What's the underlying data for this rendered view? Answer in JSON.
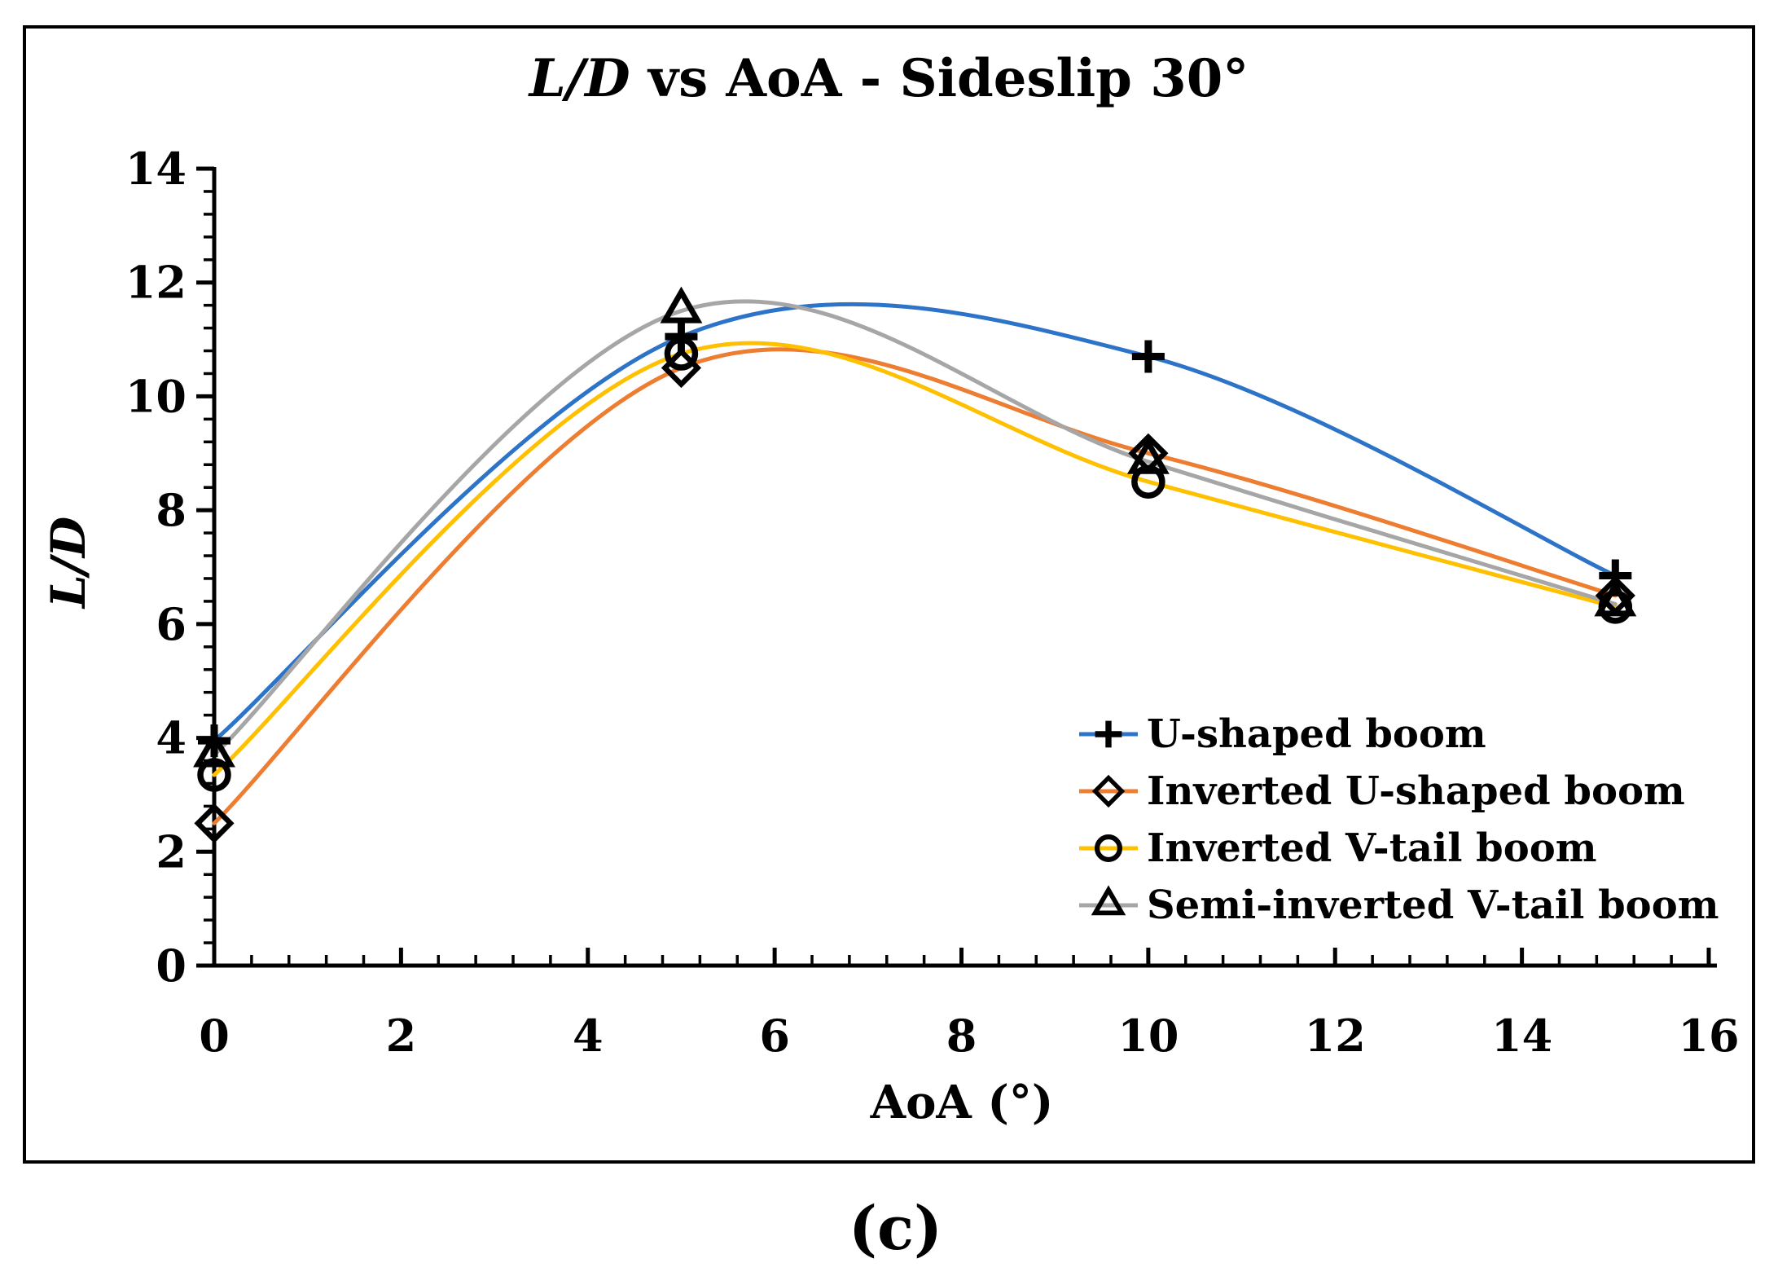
{
  "figure": {
    "title": {
      "italic_part": "L/D",
      "rest_part": " vs AoA - Sideslip 30°"
    },
    "caption": "(c)"
  },
  "axes": {
    "x": {
      "title": "AoA (°)",
      "min": 0,
      "max": 16,
      "major_tick_interval": 2,
      "minor_tick_interval": 0.4,
      "tick_labels": [
        "0",
        "2",
        "4",
        "6",
        "8",
        "10",
        "12",
        "14",
        "16"
      ]
    },
    "y": {
      "title": "L/D",
      "min": 0,
      "max": 14,
      "major_tick_interval": 2,
      "minor_tick_interval": 0.4,
      "tick_labels": [
        "0",
        "2",
        "4",
        "6",
        "8",
        "10",
        "12",
        "14"
      ]
    }
  },
  "legend": {
    "position": "inside-bottom-right",
    "entries": [
      {
        "label": "U-shaped boom",
        "marker": "plus",
        "color": "#2D73C8"
      },
      {
        "label": "Inverted U-shaped boom",
        "marker": "diamond",
        "color": "#ED7D31"
      },
      {
        "label": "Inverted V-tail boom",
        "marker": "circle",
        "color": "#FFC000"
      },
      {
        "label": "Semi-inverted V-tail boom",
        "marker": "triangle",
        "color": "#A6A6A6"
      }
    ]
  },
  "chart_data": {
    "type": "line",
    "line_style": "smooth",
    "title": "L/D vs AoA - Sideslip 30°",
    "xlabel": "AoA (°)",
    "ylabel": "L/D",
    "xlim": [
      0,
      16
    ],
    "ylim": [
      0,
      14
    ],
    "grid": false,
    "marker_color": "#000000",
    "x": [
      0,
      5,
      10,
      15
    ],
    "series": [
      {
        "name": "U-shaped boom",
        "marker": "plus",
        "color": "#2D73C8",
        "values": [
          3.95,
          11.05,
          10.7,
          6.85
        ]
      },
      {
        "name": "Inverted U-shaped boom",
        "marker": "diamond",
        "color": "#ED7D31",
        "values": [
          2.5,
          10.5,
          9.0,
          6.5
        ]
      },
      {
        "name": "Inverted V-tail boom",
        "marker": "circle",
        "color": "#FFC000",
        "values": [
          3.35,
          10.75,
          8.5,
          6.3
        ]
      },
      {
        "name": "Semi-inverted V-tail boom",
        "marker": "triangle",
        "color": "#A6A6A6",
        "values": [
          3.7,
          11.5,
          8.85,
          6.35
        ]
      }
    ]
  }
}
